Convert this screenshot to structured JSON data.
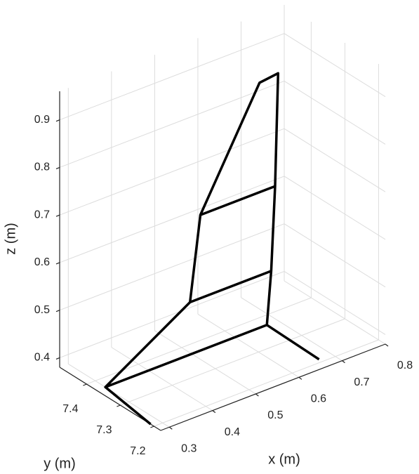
{
  "chart_data": {
    "type": "line3d",
    "xlabel": "x (m)",
    "ylabel": "y (m)",
    "zlabel": "z (m)",
    "xlim": [
      0.28,
      0.8
    ],
    "ylim": [
      7.18,
      7.48
    ],
    "zlim": [
      0.38,
      0.96
    ],
    "xticks": [
      0.3,
      0.4,
      0.5,
      0.6,
      0.7,
      0.8
    ],
    "yticks": [
      7.2,
      7.3,
      7.4
    ],
    "zticks": [
      0.4,
      0.5,
      0.6,
      0.7,
      0.8,
      0.9
    ],
    "grid": true,
    "series": [
      {
        "color": "#000000",
        "x": [
          0.28,
          0.3,
          0.496,
          0.52,
          0.657,
          0.7,
          0.693,
          0.684,
          0.674,
          0.3
        ],
        "y": [
          7.21,
          7.37,
          7.37,
          7.37,
          7.37,
          7.37,
          7.37,
          7.37,
          7.37,
          7.37
        ],
        "z": [
          0.38,
          0.38,
          0.49,
          0.665,
          0.895,
          0.9,
          0.665,
          0.49,
          0.38,
          0.38
        ]
      },
      {
        "color": "#000000",
        "x": [
          0.674,
          0.67
        ],
        "y": [
          7.37,
          7.21
        ],
        "z": [
          0.38,
          0.38
        ]
      },
      {
        "color": "#000000",
        "x": [
          0.496,
          0.684
        ],
        "y": [
          7.37,
          7.37
        ],
        "z": [
          0.49,
          0.49
        ]
      },
      {
        "color": "#000000",
        "x": [
          0.52,
          0.693
        ],
        "y": [
          7.37,
          7.37
        ],
        "z": [
          0.665,
          0.665
        ]
      }
    ]
  }
}
